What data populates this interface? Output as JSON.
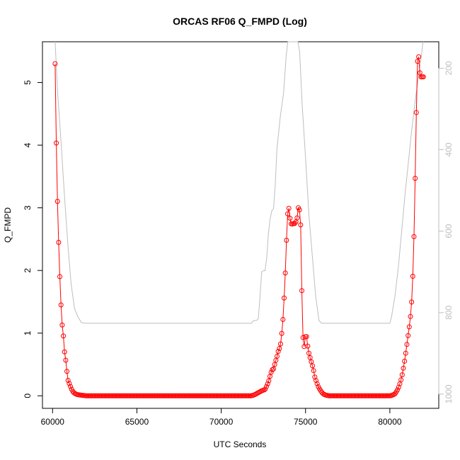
{
  "chart_data": {
    "type": "line",
    "title": "ORCAS RF06 Q_FMPD (Log)",
    "xlabel": "UTC Seconds",
    "ylabel": "Q_FMPD",
    "xlim": [
      59400,
      82900
    ],
    "ylim": [
      -0.2,
      5.65
    ],
    "x_ticks": [
      60000,
      65000,
      70000,
      75000,
      80000
    ],
    "y_ticks": [
      0,
      1,
      2,
      3,
      4,
      5
    ],
    "y2_lim": [
      1035,
      135
    ],
    "y2_ticks": [
      200,
      400,
      600,
      800,
      1000
    ],
    "colors": {
      "primary": "#ff0000",
      "secondary": "#bebebe",
      "axis": "#000000",
      "secondary_axis": "#bebebe"
    },
    "series": [
      {
        "role": "primary",
        "style": "line+open-circle",
        "x_start": 60150,
        "x_step": 70,
        "segments": [
          [
            60150,
            5.3
          ],
          [
            60200,
            4.3
          ],
          [
            60300,
            2.97
          ],
          [
            60400,
            2.1
          ],
          [
            60450,
            1.77
          ],
          [
            60500,
            1.45
          ],
          [
            60550,
            1.18
          ],
          [
            60650,
            0.93
          ],
          [
            60700,
            0.72
          ],
          [
            60800,
            0.53
          ],
          [
            60850,
            0.39
          ],
          [
            60900,
            0.26
          ],
          [
            61000,
            0.19
          ],
          [
            61100,
            0.12
          ],
          [
            61200,
            0.07
          ],
          [
            61300,
            0.04
          ],
          [
            61450,
            0.02
          ],
          [
            61700,
            0.01
          ],
          [
            62000,
            0.0
          ],
          [
            71800,
            0.0
          ],
          [
            72000,
            0.02
          ],
          [
            72200,
            0.05
          ],
          [
            72400,
            0.08
          ],
          [
            72600,
            0.1
          ],
          [
            72800,
            0.22
          ],
          [
            72900,
            0.32
          ],
          [
            73000,
            0.41
          ],
          [
            73100,
            0.43
          ],
          [
            73200,
            0.53
          ],
          [
            73300,
            0.62
          ],
          [
            73400,
            0.73
          ],
          [
            73500,
            0.78
          ],
          [
            73600,
            1.02
          ],
          [
            73700,
            1.35
          ],
          [
            73750,
            1.7
          ],
          [
            73800,
            1.96
          ],
          [
            73850,
            2.35
          ],
          [
            73900,
            2.68
          ],
          [
            73950,
            2.96
          ],
          [
            74000,
            3.0
          ],
          [
            74050,
            2.96
          ],
          [
            74100,
            2.75
          ],
          [
            74200,
            2.74
          ],
          [
            74300,
            2.75
          ],
          [
            74400,
            2.75
          ],
          [
            74500,
            2.84
          ],
          [
            74550,
            3.0
          ],
          [
            74600,
            3.0
          ],
          [
            74650,
            2.96
          ],
          [
            74700,
            2.86
          ],
          [
            74750,
            2.2
          ],
          [
            74800,
            1.33
          ],
          [
            74850,
            0.93
          ],
          [
            74900,
            0.75
          ],
          [
            74950,
            0.84
          ],
          [
            75000,
            0.97
          ],
          [
            75050,
            0.97
          ],
          [
            75100,
            0.84
          ],
          [
            75200,
            0.68
          ],
          [
            75300,
            0.58
          ],
          [
            75400,
            0.49
          ],
          [
            75500,
            0.38
          ],
          [
            75550,
            0.3
          ],
          [
            75650,
            0.22
          ],
          [
            75750,
            0.15
          ],
          [
            75850,
            0.1
          ],
          [
            75950,
            0.06
          ],
          [
            76050,
            0.03
          ],
          [
            76200,
            0.01
          ],
          [
            76400,
            0.0
          ],
          [
            80000,
            0.0
          ],
          [
            80150,
            0.01
          ],
          [
            80300,
            0.03
          ],
          [
            80400,
            0.07
          ],
          [
            80500,
            0.12
          ],
          [
            80600,
            0.2
          ],
          [
            80700,
            0.29
          ],
          [
            80800,
            0.44
          ],
          [
            80900,
            0.6
          ],
          [
            81000,
            0.8
          ],
          [
            81100,
            1.0
          ],
          [
            81200,
            1.2
          ],
          [
            81300,
            1.53
          ],
          [
            81350,
            1.84
          ],
          [
            81400,
            2.18
          ],
          [
            81450,
            2.78
          ],
          [
            81500,
            3.47
          ],
          [
            81550,
            4.22
          ],
          [
            81600,
            4.97
          ],
          [
            81650,
            5.43
          ],
          [
            81700,
            5.45
          ],
          [
            81750,
            5.25
          ],
          [
            81800,
            5.09
          ],
          [
            81900,
            5.09
          ],
          [
            82000,
            5.09
          ]
        ]
      },
      {
        "role": "secondary",
        "style": "line",
        "axis": "right",
        "points": [
          [
            60150,
            135
          ],
          [
            60300,
            260
          ],
          [
            60500,
            380
          ],
          [
            60700,
            510
          ],
          [
            60900,
            630
          ],
          [
            61100,
            730
          ],
          [
            61300,
            790
          ],
          [
            61500,
            810
          ],
          [
            61700,
            824
          ],
          [
            61900,
            826
          ],
          [
            62000,
            826
          ],
          [
            71800,
            826
          ],
          [
            71900,
            820
          ],
          [
            72100,
            819
          ],
          [
            72200,
            815
          ],
          [
            72300,
            760
          ],
          [
            72400,
            700
          ],
          [
            72500,
            697
          ],
          [
            72600,
            697
          ],
          [
            72700,
            665
          ],
          [
            72800,
            605
          ],
          [
            72900,
            570
          ],
          [
            73000,
            550
          ],
          [
            73100,
            545
          ],
          [
            73200,
            490
          ],
          [
            73300,
            400
          ],
          [
            73500,
            320
          ],
          [
            73700,
            260
          ],
          [
            73850,
            170
          ],
          [
            73950,
            135
          ],
          [
            74550,
            135
          ],
          [
            74650,
            160
          ],
          [
            74800,
            290
          ],
          [
            75000,
            420
          ],
          [
            75200,
            560
          ],
          [
            75400,
            660
          ],
          [
            75600,
            760
          ],
          [
            75800,
            820
          ],
          [
            75950,
            826
          ],
          [
            76000,
            826
          ],
          [
            80000,
            826
          ],
          [
            80100,
            810
          ],
          [
            80300,
            760
          ],
          [
            80500,
            690
          ],
          [
            80700,
            600
          ],
          [
            80900,
            510
          ],
          [
            81100,
            430
          ],
          [
            81300,
            350
          ],
          [
            81500,
            280
          ],
          [
            81700,
            220
          ],
          [
            81850,
            175
          ],
          [
            81950,
            140
          ],
          [
            82000,
            135
          ]
        ]
      }
    ]
  }
}
